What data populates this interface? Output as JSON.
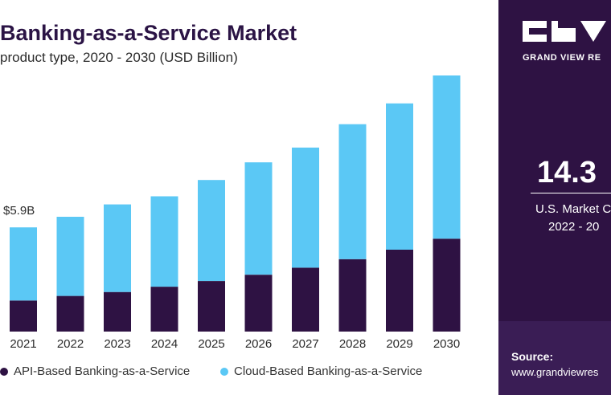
{
  "chart_data": {
    "type": "bar",
    "stacked": true,
    "title": "Banking-as-a-Service Market",
    "subtitle": "product type, 2020 - 2030 (USD Billion)",
    "categories": [
      "2021",
      "2022",
      "2023",
      "2024",
      "2025",
      "2026",
      "2027",
      "2028",
      "2029",
      "2030"
    ],
    "series": [
      {
        "name": "API-Based Banking-as-a-Service",
        "color": "#2e1243",
        "values": [
          1.76,
          2.02,
          2.24,
          2.54,
          2.86,
          3.22,
          3.62,
          4.1,
          4.64,
          5.26
        ]
      },
      {
        "name": "Cloud-Based Banking-as-a-Service",
        "color": "#5bc8f5",
        "values": [
          4.14,
          4.48,
          4.96,
          5.12,
          5.72,
          6.36,
          6.8,
          7.64,
          8.28,
          9.24
        ]
      }
    ],
    "annotation": {
      "category": "2021",
      "text": "$5.9B"
    },
    "ylim": [
      0,
      15
    ],
    "grid": false,
    "legend_position": "bottom"
  },
  "panel": {
    "brand": "GRAND VIEW RE",
    "stat_value": "14.3",
    "stat_line1": "U.S. Market C",
    "stat_line2": "2022 - 20",
    "source_label": "Source:",
    "source_url": "www.grandviewres"
  }
}
